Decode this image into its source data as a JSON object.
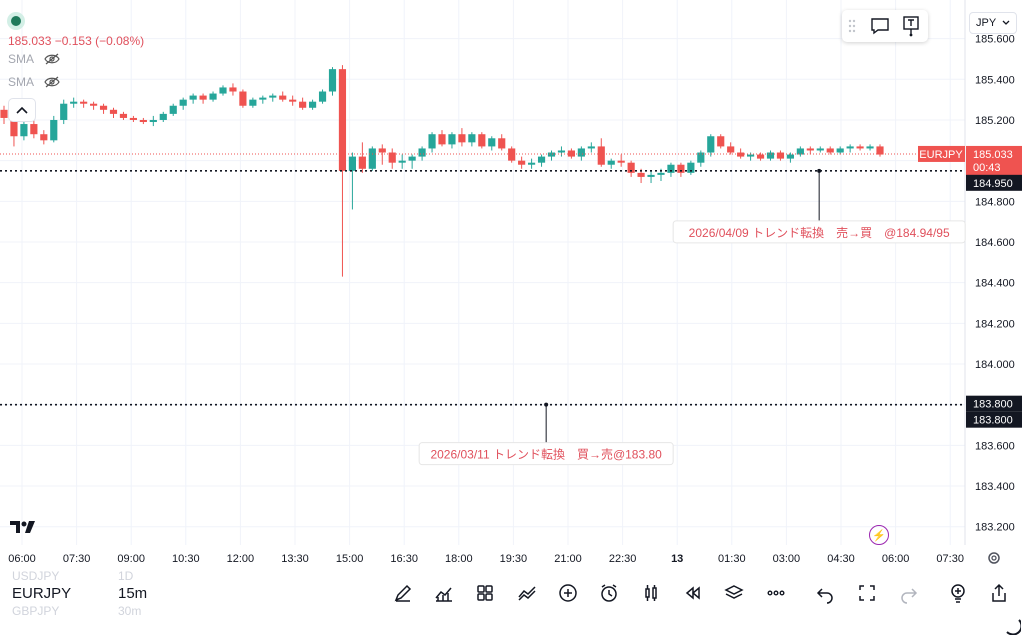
{
  "header": {
    "price": "185.033",
    "change": "−0.153",
    "change_pct": "(−0.08%)",
    "indicators": [
      {
        "label": "SMA"
      },
      {
        "label": "SMA"
      }
    ],
    "currency": "JPY"
  },
  "colors": {
    "up": "#26a69a",
    "down": "#ef5350",
    "grid": "#f0f3fa",
    "label_red": "#e0505c",
    "black_tag": "#131722"
  },
  "chart_data": {
    "type": "candlestick",
    "symbol": "EURJPY",
    "timeframe": "15m",
    "ylim": [
      183.11,
      185.79
    ],
    "y_ticks": [
      "185.600",
      "185.400",
      "185.200",
      "185.000",
      "184.800",
      "184.600",
      "184.400",
      "184.200",
      "184.000",
      "183.800",
      "183.600",
      "183.400",
      "183.200"
    ],
    "x_ticks": [
      "06:00",
      "07:30",
      "09:00",
      "10:30",
      "12:00",
      "13:30",
      "15:00",
      "16:30",
      "18:00",
      "19:30",
      "21:00",
      "22:30",
      "13",
      "01:30",
      "03:00",
      "04:30",
      "06:00",
      "07:30"
    ],
    "last_price": {
      "symbol": "EURJPY",
      "value": "185.033",
      "countdown": "00:43"
    },
    "horizontal_lines": [
      {
        "value": "184.950",
        "price": 184.95
      },
      {
        "value": "183.800",
        "price": 183.8
      },
      {
        "value": "183.800",
        "price": 183.8
      }
    ],
    "annotations": [
      {
        "text": "2026/04/09  トレンド転換　売→買　@184.94/95",
        "anchor_price": 184.95,
        "anchor_tick": 14.6
      },
      {
        "text": "2026/03/11 トレンド転換　買→売@183.80",
        "anchor_price": 183.8,
        "anchor_tick": 9.6
      }
    ],
    "candles": [
      [
        185.25,
        185.27,
        185.18,
        185.21
      ],
      [
        185.21,
        185.25,
        185.07,
        185.12
      ],
      [
        185.12,
        185.2,
        185.1,
        185.18
      ],
      [
        185.18,
        185.21,
        185.11,
        185.13
      ],
      [
        185.13,
        185.15,
        185.08,
        185.1
      ],
      [
        185.1,
        185.22,
        185.09,
        185.2
      ],
      [
        185.2,
        185.3,
        185.18,
        185.28
      ],
      [
        185.28,
        185.31,
        185.26,
        185.29
      ],
      [
        185.29,
        185.3,
        185.26,
        185.28
      ],
      [
        185.28,
        185.29,
        185.25,
        185.27
      ],
      [
        185.27,
        185.28,
        185.23,
        185.25
      ],
      [
        185.25,
        185.26,
        185.21,
        185.23
      ],
      [
        185.23,
        185.24,
        185.2,
        185.21
      ],
      [
        185.21,
        185.22,
        185.19,
        185.2
      ],
      [
        185.2,
        185.21,
        185.18,
        185.19
      ],
      [
        185.19,
        185.22,
        185.17,
        185.2
      ],
      [
        185.2,
        185.24,
        185.19,
        185.23
      ],
      [
        185.23,
        185.28,
        185.22,
        185.27
      ],
      [
        185.27,
        185.31,
        185.25,
        185.3
      ],
      [
        185.3,
        185.33,
        185.28,
        185.32
      ],
      [
        185.32,
        185.33,
        185.28,
        185.3
      ],
      [
        185.3,
        185.34,
        185.29,
        185.33
      ],
      [
        185.33,
        185.37,
        185.32,
        185.36
      ],
      [
        185.36,
        185.38,
        185.32,
        185.34
      ],
      [
        185.34,
        185.35,
        185.26,
        185.27
      ],
      [
        185.27,
        185.31,
        185.26,
        185.3
      ],
      [
        185.3,
        185.32,
        185.28,
        185.31
      ],
      [
        185.31,
        185.33,
        185.29,
        185.32
      ],
      [
        185.32,
        185.34,
        185.29,
        185.3
      ],
      [
        185.3,
        185.32,
        185.27,
        185.29
      ],
      [
        185.29,
        185.31,
        185.25,
        185.26
      ],
      [
        185.26,
        185.3,
        185.25,
        185.29
      ],
      [
        185.29,
        185.35,
        185.28,
        185.34
      ],
      [
        185.34,
        185.46,
        185.32,
        185.45
      ],
      [
        185.45,
        185.47,
        184.43,
        184.95
      ],
      [
        184.95,
        185.04,
        184.76,
        185.02
      ],
      [
        185.02,
        185.09,
        184.94,
        184.96
      ],
      [
        184.96,
        185.07,
        184.95,
        185.06
      ],
      [
        185.06,
        185.08,
        184.98,
        185.04
      ],
      [
        185.04,
        185.06,
        184.96,
        184.99
      ],
      [
        184.99,
        185.03,
        184.96,
        185.0
      ],
      [
        185.0,
        185.03,
        184.96,
        185.02
      ],
      [
        185.02,
        185.07,
        185.0,
        185.06
      ],
      [
        185.06,
        185.14,
        185.04,
        185.13
      ],
      [
        185.13,
        185.15,
        185.07,
        185.08
      ],
      [
        185.08,
        185.14,
        185.06,
        185.13
      ],
      [
        185.13,
        185.16,
        185.07,
        185.09
      ],
      [
        185.09,
        185.14,
        185.07,
        185.13
      ],
      [
        185.13,
        185.14,
        185.06,
        185.07
      ],
      [
        185.07,
        185.12,
        185.05,
        185.11
      ],
      [
        185.11,
        185.13,
        185.05,
        185.06
      ],
      [
        185.06,
        185.07,
        184.99,
        185.0
      ],
      [
        185.0,
        185.02,
        184.96,
        184.98
      ],
      [
        184.98,
        185.01,
        184.96,
        184.99
      ],
      [
        184.99,
        185.03,
        184.97,
        185.02
      ],
      [
        185.02,
        185.05,
        185.0,
        185.04
      ],
      [
        185.04,
        185.07,
        185.02,
        185.05
      ],
      [
        185.05,
        185.06,
        185.01,
        185.02
      ],
      [
        185.02,
        185.07,
        185.0,
        185.06
      ],
      [
        185.06,
        185.09,
        185.04,
        185.07
      ],
      [
        185.07,
        185.11,
        184.97,
        184.98
      ],
      [
        184.98,
        185.01,
        184.96,
        185.0
      ],
      [
        185.0,
        185.03,
        184.97,
        184.99
      ],
      [
        184.99,
        185.0,
        184.92,
        184.94
      ],
      [
        184.94,
        184.96,
        184.89,
        184.92
      ],
      [
        184.92,
        184.95,
        184.89,
        184.93
      ],
      [
        184.93,
        184.96,
        184.9,
        184.94
      ],
      [
        184.94,
        184.99,
        184.92,
        184.98
      ],
      [
        184.98,
        184.99,
        184.92,
        184.94
      ],
      [
        184.94,
        185.0,
        184.93,
        184.99
      ],
      [
        184.99,
        185.05,
        184.97,
        185.04
      ],
      [
        185.04,
        185.13,
        185.02,
        185.12
      ],
      [
        185.12,
        185.13,
        185.06,
        185.07
      ],
      [
        185.07,
        185.09,
        185.03,
        185.04
      ],
      [
        185.04,
        185.06,
        185.01,
        185.02
      ],
      [
        185.02,
        185.04,
        185.0,
        185.03
      ],
      [
        185.03,
        185.04,
        185.0,
        185.01
      ],
      [
        185.01,
        185.05,
        185.0,
        185.04
      ],
      [
        185.04,
        185.05,
        185.0,
        185.01
      ],
      [
        185.01,
        185.04,
        184.99,
        185.03
      ],
      [
        185.03,
        185.07,
        185.02,
        185.06
      ],
      [
        185.06,
        185.07,
        185.03,
        185.05
      ],
      [
        185.05,
        185.07,
        185.04,
        185.06
      ],
      [
        185.06,
        185.07,
        185.03,
        185.04
      ],
      [
        185.04,
        185.07,
        185.03,
        185.06
      ],
      [
        185.06,
        185.08,
        185.04,
        185.07
      ],
      [
        185.07,
        185.08,
        185.05,
        185.06
      ],
      [
        185.06,
        185.08,
        185.05,
        185.07
      ],
      [
        185.07,
        185.08,
        185.02,
        185.03
      ]
    ]
  },
  "bottom": {
    "symbol_prev": "USDJPY",
    "timeframe_prev": "1D",
    "symbol": "EURJPY",
    "timeframe": "15m",
    "symbol_next": "GBPJPY",
    "timeframe_next": "30m",
    "tools": [
      "pen-icon",
      "indicators-icon",
      "layout-icon",
      "compare-icon",
      "add-icon",
      "alert-icon",
      "candles-icon",
      "replay-icon",
      "layers-icon",
      "more-icon",
      "undo-icon",
      "fullscreen-icon",
      "redo-icon",
      "idea-icon",
      "share-icon"
    ]
  }
}
